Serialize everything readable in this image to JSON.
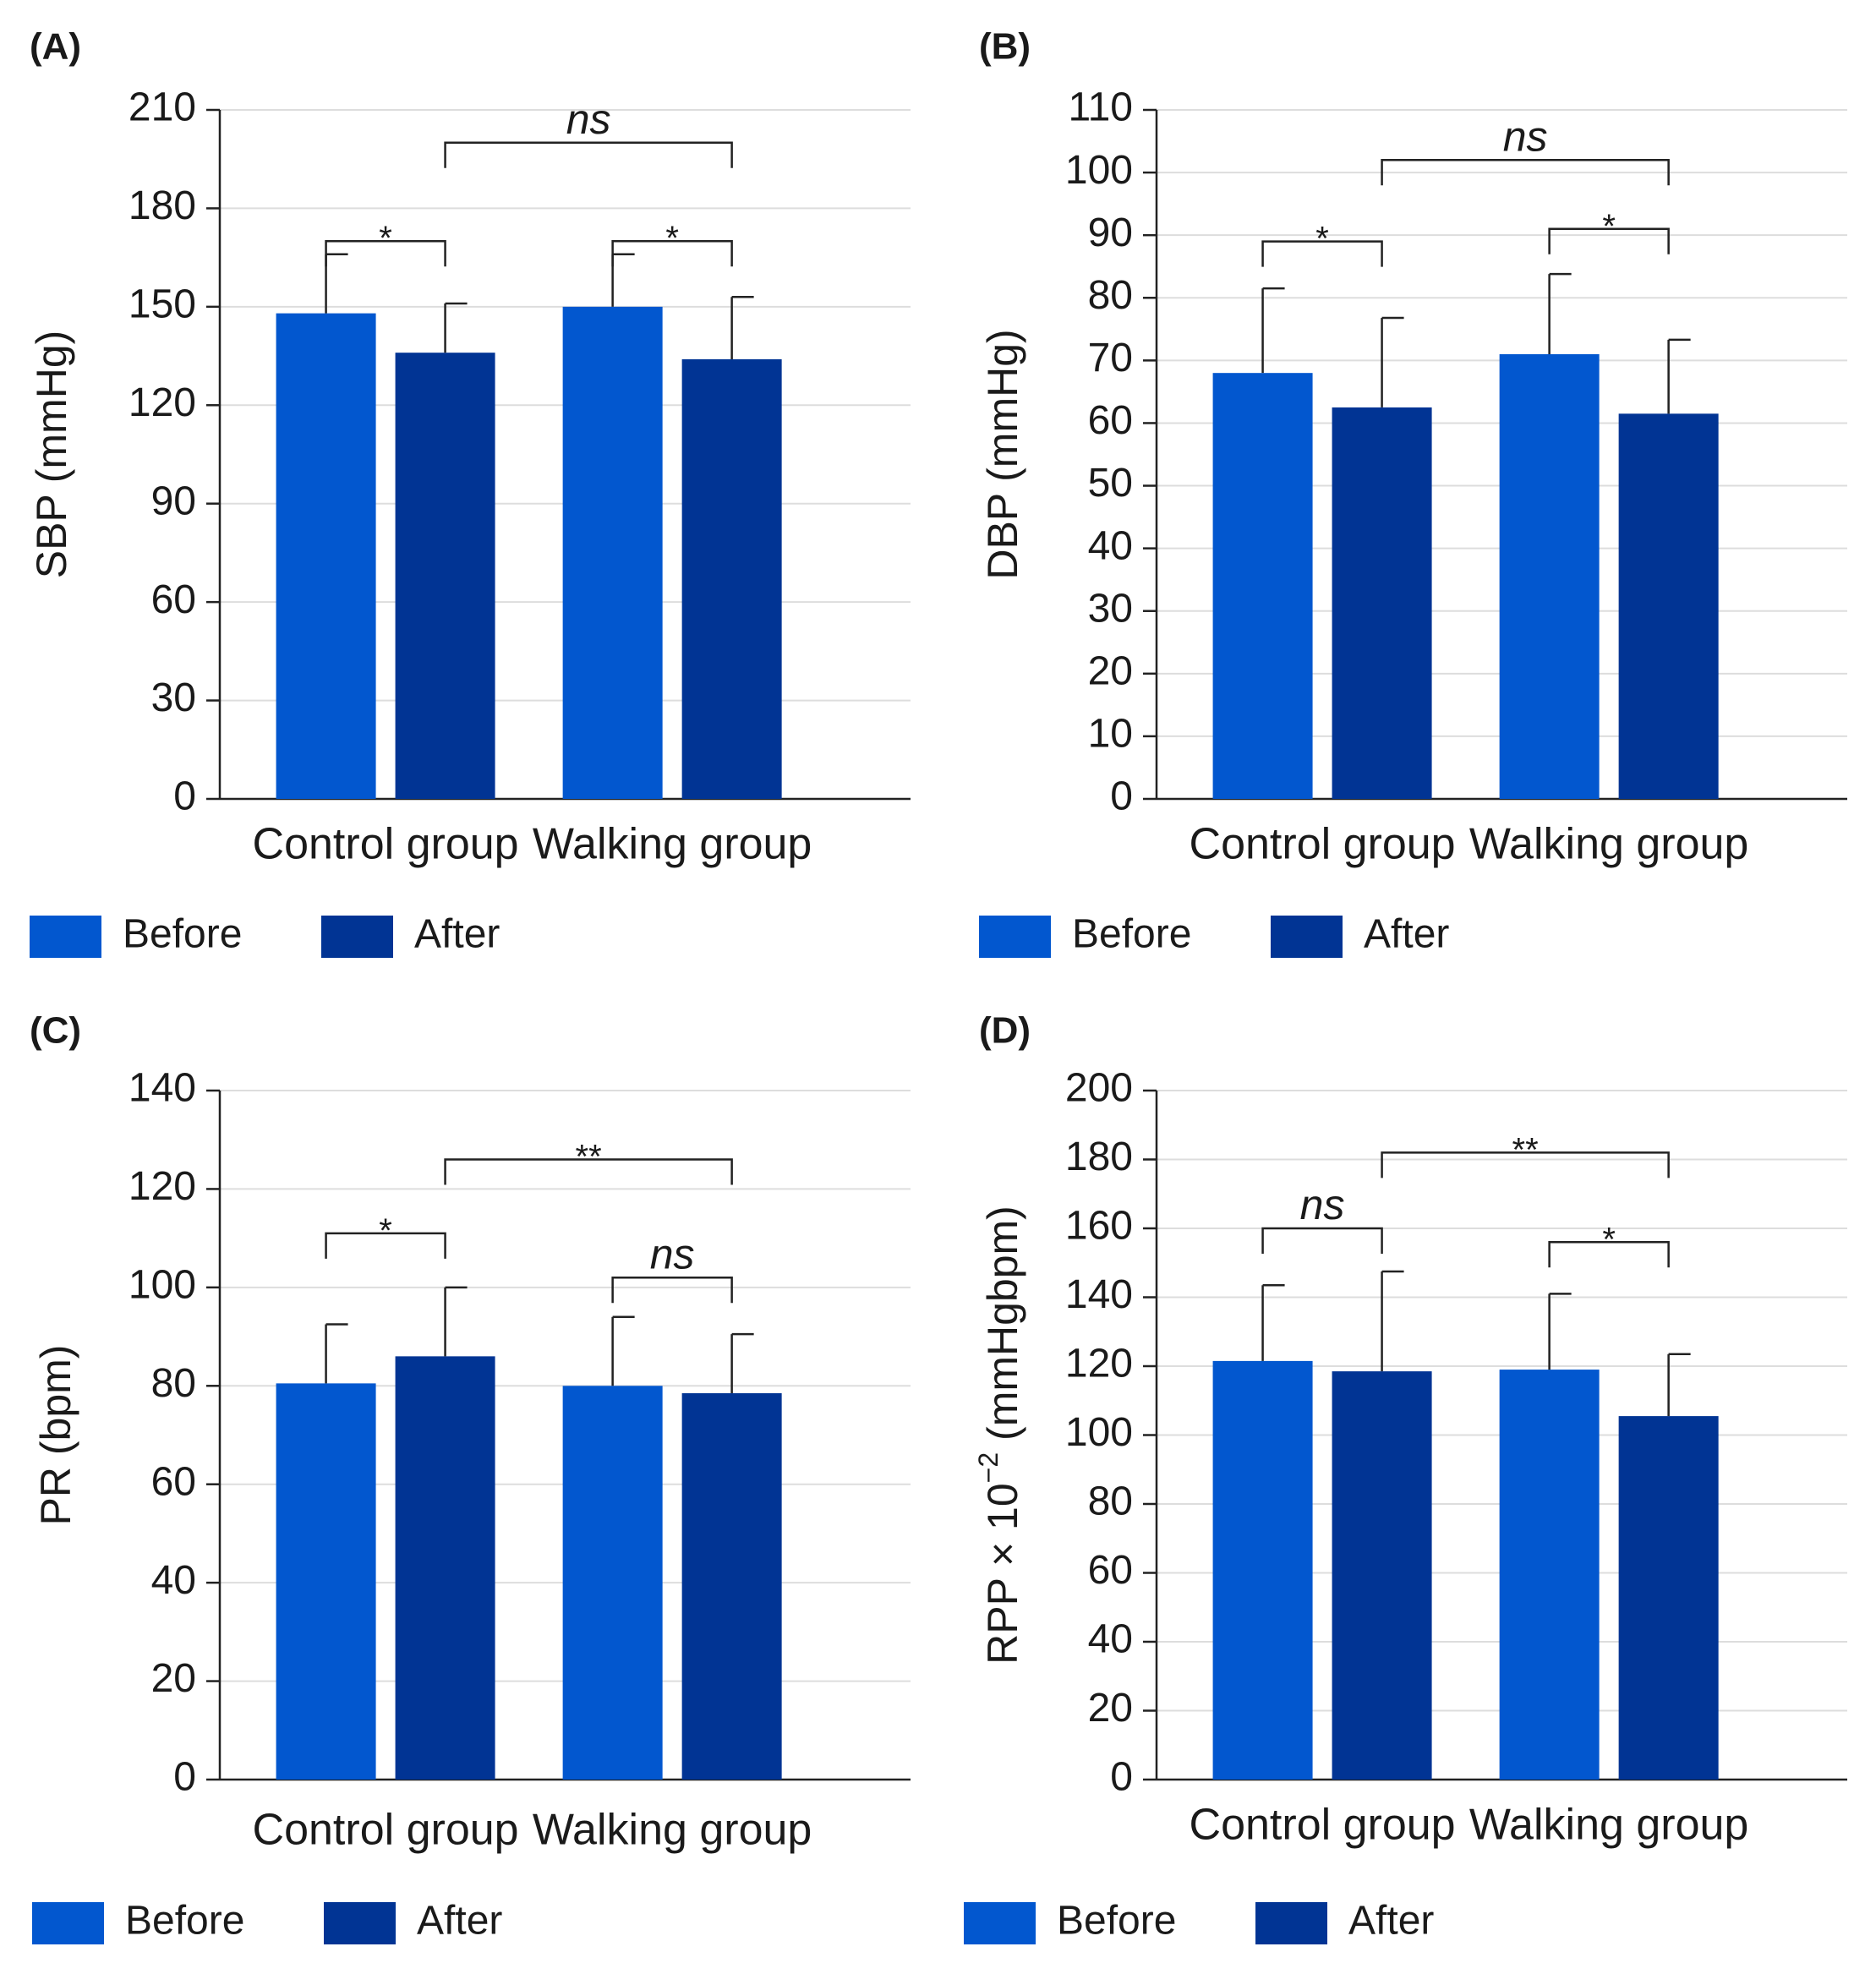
{
  "figure": {
    "colors": {
      "before": "#0257CF",
      "after": "#013494",
      "grid": "#dddddd",
      "axis": "#222222",
      "text": "#1a1a1a"
    }
  },
  "chart_data": [
    {
      "type": "bar",
      "panel_label": "(A)",
      "ylabel": "SBP (mmHg)",
      "ylabel_sup": "",
      "ylabel_after": "",
      "ylim": [
        0,
        210
      ],
      "yticks": [
        0,
        30,
        60,
        90,
        120,
        150,
        180,
        210
      ],
      "categories": [
        "Control group",
        "Walking group"
      ],
      "series": [
        {
          "name": "Before",
          "values": [
            148,
            150
          ],
          "errors": [
            18,
            16
          ]
        },
        {
          "name": "After",
          "values": [
            136,
            134
          ],
          "errors": [
            15,
            19
          ]
        }
      ],
      "legend": [
        "Before",
        "After"
      ],
      "significance": [
        {
          "from": [
            0,
            0
          ],
          "to": [
            0,
            1
          ],
          "y": 170,
          "label": "*",
          "italic": false
        },
        {
          "from": [
            1,
            0
          ],
          "to": [
            1,
            1
          ],
          "y": 170,
          "label": "*",
          "italic": false
        },
        {
          "from": [
            0,
            1
          ],
          "to": [
            1,
            1
          ],
          "y": 200,
          "label": "ns",
          "italic": true
        }
      ]
    },
    {
      "type": "bar",
      "panel_label": "(B)",
      "ylabel": "DBP (mmHg)",
      "ylabel_sup": "",
      "ylabel_after": "",
      "ylim": [
        0,
        110
      ],
      "yticks": [
        0,
        10,
        20,
        30,
        40,
        50,
        60,
        70,
        80,
        90,
        100,
        110
      ],
      "categories": [
        "Control group",
        "Walking group"
      ],
      "series": [
        {
          "name": "Before",
          "values": [
            68,
            71
          ],
          "errors": [
            13.5,
            12.8
          ]
        },
        {
          "name": "After",
          "values": [
            62.5,
            61.5
          ],
          "errors": [
            14.3,
            11.8
          ]
        }
      ],
      "legend": [
        "Before",
        "After"
      ],
      "significance": [
        {
          "from": [
            0,
            0
          ],
          "to": [
            0,
            1
          ],
          "y": 89,
          "label": "*",
          "italic": false
        },
        {
          "from": [
            1,
            0
          ],
          "to": [
            1,
            1
          ],
          "y": 91,
          "label": "*",
          "italic": false
        },
        {
          "from": [
            0,
            1
          ],
          "to": [
            1,
            1
          ],
          "y": 102,
          "label": "ns",
          "italic": true
        }
      ]
    },
    {
      "type": "bar",
      "panel_label": "(C)",
      "ylabel": "PR (bpm)",
      "ylabel_sup": "",
      "ylabel_after": "",
      "ylim": [
        0,
        140
      ],
      "yticks": [
        0,
        20,
        40,
        60,
        80,
        100,
        120,
        140
      ],
      "categories": [
        "Control group",
        "Walking group"
      ],
      "series": [
        {
          "name": "Before",
          "values": [
            80.5,
            80
          ],
          "errors": [
            12,
            14
          ]
        },
        {
          "name": "After",
          "values": [
            86,
            78.5
          ],
          "errors": [
            14,
            12
          ]
        }
      ],
      "legend": [
        "Before",
        "After"
      ],
      "significance": [
        {
          "from": [
            0,
            0
          ],
          "to": [
            0,
            1
          ],
          "y": 111,
          "label": "*",
          "italic": false
        },
        {
          "from": [
            1,
            0
          ],
          "to": [
            1,
            1
          ],
          "y": 102,
          "label": "ns",
          "italic": true
        },
        {
          "from": [
            0,
            1
          ],
          "to": [
            1,
            1
          ],
          "y": 126,
          "label": "**",
          "italic": false
        }
      ]
    },
    {
      "type": "bar",
      "panel_label": "(D)",
      "ylabel": "RPP × 10",
      "ylabel_sup": "−2",
      "ylabel_after": " (mmHgbpm)",
      "ylim": [
        0,
        200
      ],
      "yticks": [
        0,
        20,
        40,
        60,
        80,
        100,
        120,
        140,
        160,
        180,
        200
      ],
      "categories": [
        "Control group",
        "Walking group"
      ],
      "series": [
        {
          "name": "Before",
          "values": [
            121.5,
            119
          ],
          "errors": [
            22,
            22
          ]
        },
        {
          "name": "After",
          "values": [
            118.5,
            105.5
          ],
          "errors": [
            29,
            18
          ]
        }
      ],
      "legend": [
        "Before",
        "After"
      ],
      "significance": [
        {
          "from": [
            0,
            0
          ],
          "to": [
            0,
            1
          ],
          "y": 160,
          "label": "ns",
          "italic": true
        },
        {
          "from": [
            1,
            0
          ],
          "to": [
            1,
            1
          ],
          "y": 156,
          "label": "*",
          "italic": false
        },
        {
          "from": [
            0,
            1
          ],
          "to": [
            1,
            1
          ],
          "y": 182,
          "label": "**",
          "italic": false
        }
      ]
    }
  ]
}
